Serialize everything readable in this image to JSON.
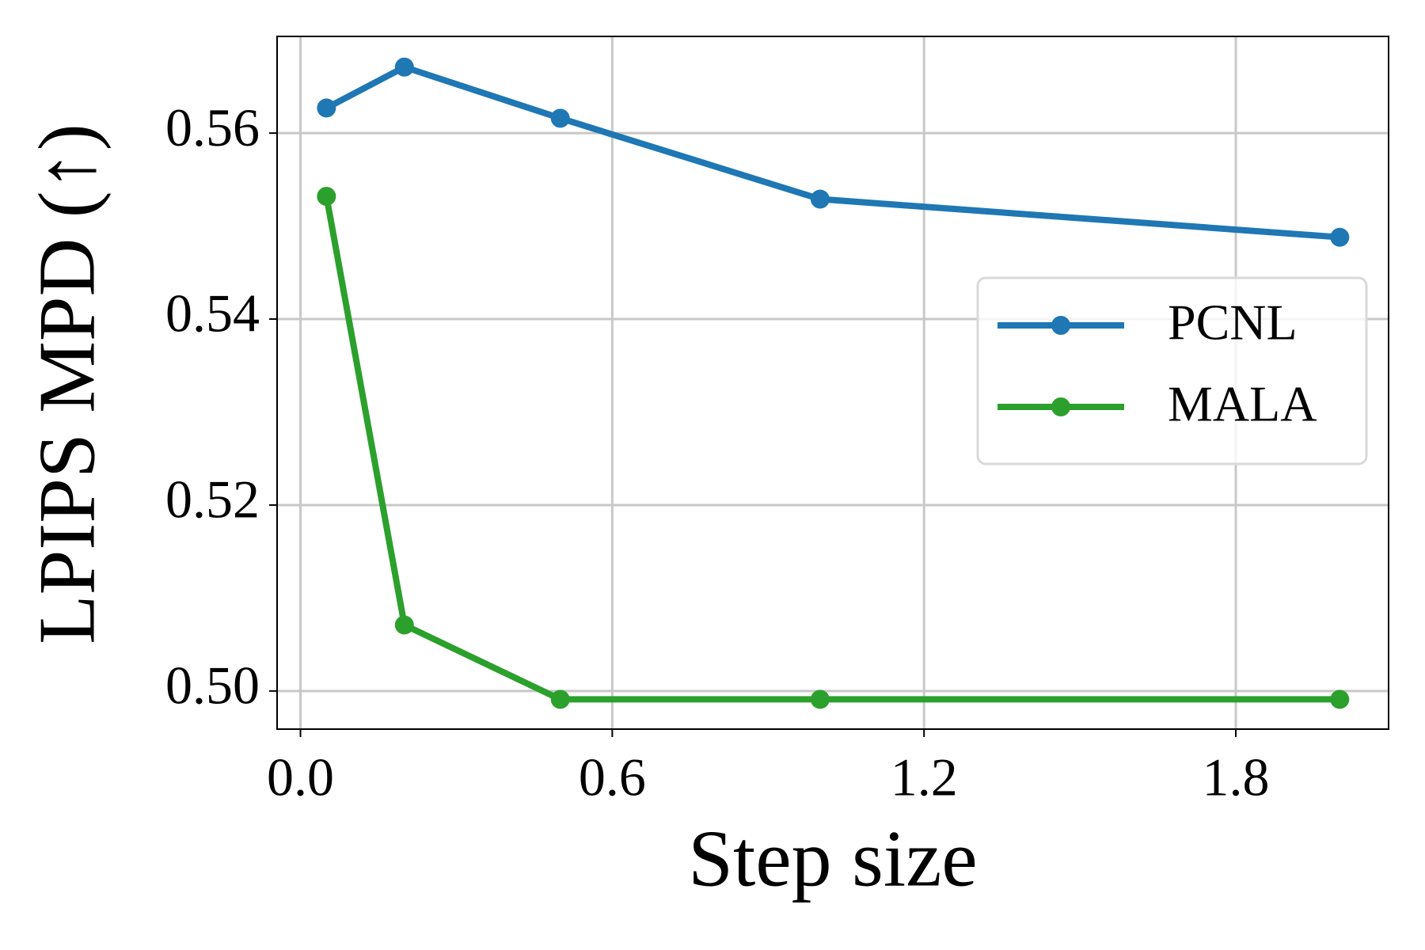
{
  "chart_data": {
    "type": "line",
    "xlabel": "Step size",
    "ylabel": "LPIPS MPD (↑)",
    "x": [
      0.05,
      0.2,
      0.5,
      1.0,
      2.0
    ],
    "series": [
      {
        "name": "PCNL",
        "color": "#1f77b4",
        "values": [
          0.5627,
          0.5671,
          0.5616,
          0.5529,
          0.5488
        ]
      },
      {
        "name": "MALA",
        "color": "#2ca02c",
        "values": [
          0.5532,
          0.5071,
          0.4991,
          0.4991,
          0.4991
        ]
      }
    ],
    "xlim": [
      -0.045,
      2.094
    ],
    "ylim": [
      0.4959,
      0.5704
    ],
    "xticks": [
      {
        "value": 0,
        "label": "0.0"
      },
      0.6,
      1.2,
      1.8
    ],
    "yticks": [
      {
        "value": 0.5,
        "label": "0.50"
      },
      0.52,
      0.54,
      0.56
    ],
    "grid": true,
    "legend": "center right"
  }
}
